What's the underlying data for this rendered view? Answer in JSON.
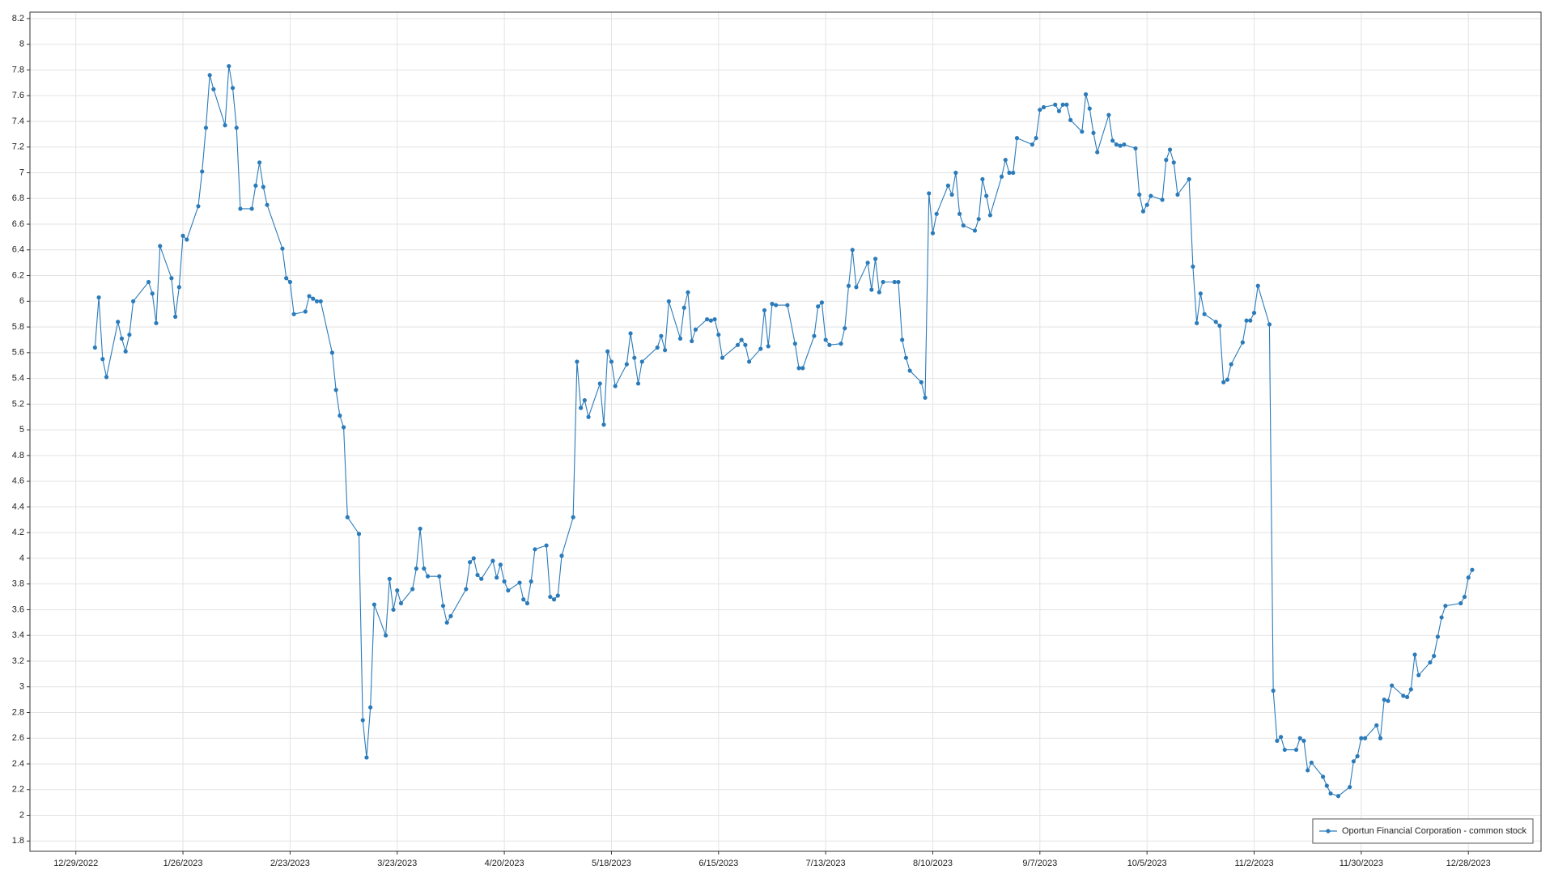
{
  "chart_data": {
    "type": "line",
    "x": [
      "1/3/2023",
      "1/4/2023",
      "1/5/2023",
      "1/6/2023",
      "1/9/2023",
      "1/10/2023",
      "1/11/2023",
      "1/12/2023",
      "1/13/2023",
      "1/17/2023",
      "1/18/2023",
      "1/19/2023",
      "1/20/2023",
      "1/23/2023",
      "1/24/2023",
      "1/25/2023",
      "1/26/2023",
      "1/27/2023",
      "1/30/2023",
      "1/31/2023",
      "2/1/2023",
      "2/2/2023",
      "2/3/2023",
      "2/6/2023",
      "2/7/2023",
      "2/8/2023",
      "2/9/2023",
      "2/10/2023",
      "2/13/2023",
      "2/14/2023",
      "2/15/2023",
      "2/16/2023",
      "2/17/2023",
      "2/21/2023",
      "2/22/2023",
      "2/23/2023",
      "2/24/2023",
      "2/27/2023",
      "2/28/2023",
      "3/1/2023",
      "3/2/2023",
      "3/3/2023",
      "3/6/2023",
      "3/7/2023",
      "3/8/2023",
      "3/9/2023",
      "3/10/2023",
      "3/13/2023",
      "3/14/2023",
      "3/15/2023",
      "3/16/2023",
      "3/17/2023",
      "3/20/2023",
      "3/21/2023",
      "3/22/2023",
      "3/23/2023",
      "3/24/2023",
      "3/27/2023",
      "3/28/2023",
      "3/29/2023",
      "3/30/2023",
      "3/31/2023",
      "4/3/2023",
      "4/4/2023",
      "4/5/2023",
      "4/6/2023",
      "4/10/2023",
      "4/11/2023",
      "4/12/2023",
      "4/13/2023",
      "4/14/2023",
      "4/17/2023",
      "4/18/2023",
      "4/19/2023",
      "4/20/2023",
      "4/21/2023",
      "4/24/2023",
      "4/25/2023",
      "4/26/2023",
      "4/27/2023",
      "4/28/2023",
      "5/1/2023",
      "5/2/2023",
      "5/3/2023",
      "5/4/2023",
      "5/5/2023",
      "5/8/2023",
      "5/9/2023",
      "5/10/2023",
      "5/11/2023",
      "5/12/2023",
      "5/15/2023",
      "5/16/2023",
      "5/17/2023",
      "5/18/2023",
      "5/19/2023",
      "5/22/2023",
      "5/23/2023",
      "5/24/2023",
      "5/25/2023",
      "5/26/2023",
      "5/30/2023",
      "5/31/2023",
      "6/1/2023",
      "6/2/2023",
      "6/5/2023",
      "6/6/2023",
      "6/7/2023",
      "6/8/2023",
      "6/9/2023",
      "6/12/2023",
      "6/13/2023",
      "6/14/2023",
      "6/15/2023",
      "6/16/2023",
      "6/20/2023",
      "6/21/2023",
      "6/22/2023",
      "6/23/2023",
      "6/26/2023",
      "6/27/2023",
      "6/28/2023",
      "6/29/2023",
      "6/30/2023",
      "7/3/2023",
      "7/5/2023",
      "7/6/2023",
      "7/7/2023",
      "7/10/2023",
      "7/11/2023",
      "7/12/2023",
      "7/13/2023",
      "7/14/2023",
      "7/17/2023",
      "7/18/2023",
      "7/19/2023",
      "7/20/2023",
      "7/21/2023",
      "7/24/2023",
      "7/25/2023",
      "7/26/2023",
      "7/27/2023",
      "7/28/2023",
      "7/31/2023",
      "8/1/2023",
      "8/2/2023",
      "8/3/2023",
      "8/4/2023",
      "8/7/2023",
      "8/8/2023",
      "8/9/2023",
      "8/10/2023",
      "8/11/2023",
      "8/14/2023",
      "8/15/2023",
      "8/16/2023",
      "8/17/2023",
      "8/18/2023",
      "8/21/2023",
      "8/22/2023",
      "8/23/2023",
      "8/24/2023",
      "8/25/2023",
      "8/28/2023",
      "8/29/2023",
      "8/30/2023",
      "8/31/2023",
      "9/1/2023",
      "9/5/2023",
      "9/6/2023",
      "9/7/2023",
      "9/8/2023",
      "9/11/2023",
      "9/12/2023",
      "9/13/2023",
      "9/14/2023",
      "9/15/2023",
      "9/18/2023",
      "9/19/2023",
      "9/20/2023",
      "9/21/2023",
      "9/22/2023",
      "9/25/2023",
      "9/26/2023",
      "9/27/2023",
      "9/28/2023",
      "9/29/2023",
      "10/2/2023",
      "10/3/2023",
      "10/4/2023",
      "10/5/2023",
      "10/6/2023",
      "10/9/2023",
      "10/10/2023",
      "10/11/2023",
      "10/12/2023",
      "10/13/2023",
      "10/16/2023",
      "10/17/2023",
      "10/18/2023",
      "10/19/2023",
      "10/20/2023",
      "10/23/2023",
      "10/24/2023",
      "10/25/2023",
      "10/26/2023",
      "10/27/2023",
      "10/30/2023",
      "10/31/2023",
      "11/1/2023",
      "11/2/2023",
      "11/3/2023",
      "11/6/2023",
      "11/7/2023",
      "11/8/2023",
      "11/9/2023",
      "11/10/2023",
      "11/13/2023",
      "11/14/2023",
      "11/15/2023",
      "11/16/2023",
      "11/17/2023",
      "11/20/2023",
      "11/21/2023",
      "11/22/2023",
      "11/24/2023",
      "11/27/2023",
      "11/28/2023",
      "11/29/2023",
      "11/30/2023",
      "12/1/2023",
      "12/4/2023",
      "12/5/2023",
      "12/6/2023",
      "12/7/2023",
      "12/8/2023",
      "12/11/2023",
      "12/12/2023",
      "12/13/2023",
      "12/14/2023",
      "12/15/2023",
      "12/18/2023",
      "12/19/2023",
      "12/20/2023",
      "12/21/2023",
      "12/22/2023",
      "12/26/2023",
      "12/27/2023",
      "12/28/2023",
      "12/29/2023"
    ],
    "series": [
      {
        "name": "Oportun Financial Corporation - common stock",
        "color": "#2b7bba",
        "values": [
          5.64,
          6.03,
          5.55,
          5.41,
          5.84,
          5.71,
          5.61,
          5.74,
          6.0,
          6.15,
          6.06,
          5.83,
          6.43,
          6.18,
          5.88,
          6.11,
          6.51,
          6.48,
          6.74,
          7.01,
          7.35,
          7.76,
          7.65,
          7.37,
          7.83,
          7.66,
          7.35,
          6.72,
          6.72,
          6.9,
          7.08,
          6.89,
          6.75,
          6.41,
          6.18,
          6.15,
          5.9,
          5.92,
          6.04,
          6.02,
          6.0,
          6.0,
          5.6,
          5.31,
          5.11,
          5.02,
          4.32,
          4.19,
          2.74,
          2.45,
          2.84,
          3.64,
          3.4,
          3.84,
          3.6,
          3.75,
          3.65,
          3.76,
          3.92,
          4.23,
          3.92,
          3.86,
          3.86,
          3.63,
          3.5,
          3.55,
          3.76,
          3.97,
          4.0,
          3.87,
          3.84,
          3.98,
          3.85,
          3.95,
          3.82,
          3.75,
          3.81,
          3.68,
          3.65,
          3.82,
          4.07,
          4.1,
          3.7,
          3.68,
          3.71,
          4.02,
          4.32,
          5.53,
          5.17,
          5.23,
          5.1,
          5.36,
          5.04,
          5.61,
          5.53,
          5.34,
          5.51,
          5.75,
          5.56,
          5.36,
          5.53,
          5.64,
          5.73,
          5.62,
          6.0,
          5.71,
          5.95,
          6.07,
          5.69,
          5.78,
          5.86,
          5.85,
          5.86,
          5.74,
          5.56,
          5.66,
          5.7,
          5.66,
          5.53,
          5.63,
          5.93,
          5.65,
          5.98,
          5.97,
          5.97,
          5.67,
          5.48,
          5.48,
          5.73,
          5.96,
          5.99,
          5.7,
          5.66,
          5.67,
          5.79,
          6.12,
          6.4,
          6.11,
          6.3,
          6.09,
          6.33,
          6.07,
          6.15,
          6.15,
          6.15,
          5.7,
          5.56,
          5.46,
          5.37,
          5.25,
          6.84,
          6.53,
          6.68,
          6.9,
          6.83,
          7.0,
          6.68,
          6.59,
          6.55,
          6.64,
          6.95,
          6.82,
          6.67,
          6.97,
          7.1,
          7.0,
          7.0,
          7.27,
          7.22,
          7.27,
          7.49,
          7.51,
          7.53,
          7.48,
          7.53,
          7.53,
          7.41,
          7.32,
          7.61,
          7.5,
          7.31,
          7.16,
          7.45,
          7.25,
          7.22,
          7.21,
          7.22,
          7.19,
          6.83,
          6.7,
          6.75,
          6.82,
          6.79,
          7.1,
          7.18,
          7.08,
          6.83,
          6.95,
          6.27,
          5.83,
          6.06,
          5.9,
          5.84,
          5.81,
          5.37,
          5.39,
          5.51,
          5.68,
          5.85,
          5.85,
          5.91,
          6.12,
          5.82,
          2.97,
          2.58,
          2.61,
          2.51,
          2.51,
          2.6,
          2.58,
          2.35,
          2.41,
          2.3,
          2.23,
          2.17,
          2.15,
          2.22,
          2.42,
          2.46,
          2.6,
          2.6,
          2.7,
          2.6,
          2.9,
          2.89,
          3.01,
          2.93,
          2.92,
          2.98,
          3.25,
          3.09,
          3.19,
          3.24,
          3.39,
          3.54,
          3.63,
          3.65,
          3.7,
          3.85,
          3.91
        ]
      }
    ],
    "xlim": [
      "12/17/2022",
      "1/16/2024"
    ],
    "xticks": [
      "12/29/2022",
      "1/26/2023",
      "2/23/2023",
      "3/23/2023",
      "4/20/2023",
      "5/18/2023",
      "6/15/2023",
      "7/13/2023",
      "8/10/2023",
      "9/7/2023",
      "10/5/2023",
      "11/2/2023",
      "11/30/2023",
      "12/28/2023"
    ],
    "ylim": [
      1.72,
      8.25
    ],
    "yticks": [
      1.8,
      2,
      2.2,
      2.4,
      2.6,
      2.8,
      3,
      3.2,
      3.4,
      3.6,
      3.8,
      4,
      4.2,
      4.4,
      4.6,
      4.8,
      5,
      5.2,
      5.4,
      5.6,
      5.8,
      6,
      6.2,
      6.4,
      6.6,
      6.8,
      7,
      7.2,
      7.4,
      7.6,
      7.8,
      8,
      8.2
    ],
    "grid": true,
    "legend": "lower right"
  }
}
